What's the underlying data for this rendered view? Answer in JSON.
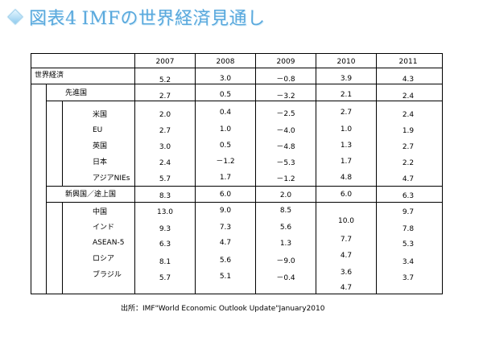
{
  "header": {
    "title": "図表4",
    "title_suffix": "IMFの世界経済見通し"
  },
  "table": {
    "years": [
      "2007",
      "2008",
      "2009",
      "2010",
      "2011"
    ],
    "rows": [
      {
        "label": "世界経済",
        "values": [
          "5.2",
          "3.0",
          "－0.8",
          "3.9",
          "4.3"
        ]
      },
      {
        "label": "先進国",
        "values": [
          "2.7",
          "0.5",
          "－3.2",
          "2.1",
          "2.4"
        ]
      },
      {
        "label": "米国",
        "values": [
          "2.0",
          "0.4",
          "－2.5",
          "2.7",
          "2.4"
        ]
      },
      {
        "label": "EU",
        "values": [
          "2.7",
          "1.0",
          "－4.0",
          "1.0",
          "1.9"
        ]
      },
      {
        "label": "英国",
        "values": [
          "3.0",
          "0.5",
          "－4.8",
          "1.3",
          "2.7"
        ]
      },
      {
        "label": "日本",
        "values": [
          "2.4",
          "－1.2",
          "－5.3",
          "1.7",
          "2.2"
        ]
      },
      {
        "label": "アジアNIEs",
        "values": [
          "5.7",
          "1.7",
          "－1.2",
          "4.8",
          "4.7"
        ]
      },
      {
        "label": "新興国／途上国",
        "values": [
          "8.3",
          "6.0",
          "2.0",
          "6.0",
          "6.3"
        ]
      },
      {
        "label": "中国",
        "values": [
          "13.0",
          "9.0",
          "8.5",
          "10.0",
          "9.7"
        ]
      },
      {
        "label": "インド",
        "values": [
          "9.3",
          "7.3",
          "5.6",
          "7.7",
          "7.8"
        ]
      },
      {
        "label": "ASEAN-5",
        "values": [
          "6.3",
          "4.7",
          "1.3",
          "4.7",
          "5.3"
        ]
      },
      {
        "label": "ロシア",
        "values": [
          "8.1",
          "5.6",
          "－9.0",
          "3.6",
          "3.4"
        ]
      },
      {
        "label": "ブラジル",
        "values": [
          "5.7",
          "5.1",
          "－0.4",
          "4.7",
          "3.7"
        ]
      }
    ]
  },
  "source": "出所：IMF\"World Economic Outlook Update\"January2010"
}
